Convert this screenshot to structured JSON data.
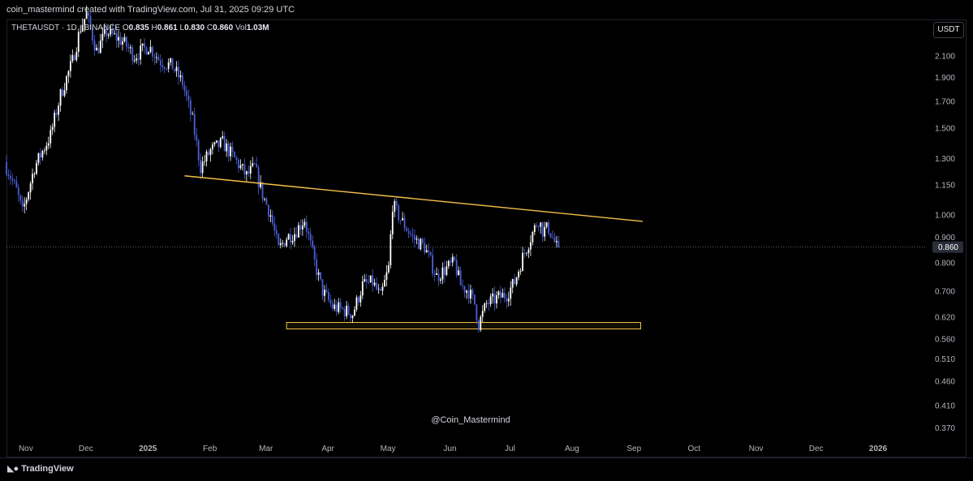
{
  "header": {
    "author_line": "coin_mastermind created with TradingView.com, Jul 31, 2025 09:29 UTC"
  },
  "legend": {
    "symbol": "THETAUSDT · 1D · BINANCE",
    "o_label": "O",
    "o_value": "0.835",
    "h_label": "H",
    "h_value": "0.861",
    "l_label": "L",
    "l_value": "0.830",
    "c_label": "C",
    "c_value": "0.860",
    "vol_label": "Vol",
    "vol_value": "1.03M"
  },
  "currency_button": "USDT",
  "watermark": "@Coin_Mastermind",
  "footer": {
    "brand": "TradingView"
  },
  "colors": {
    "background": "#000000",
    "candle_up": "#ffffff",
    "candle_down": "#4a5fd8",
    "trendline": "#f5c04a",
    "support_zone": "#f5c04a",
    "price_line": "#9598a1"
  },
  "chart_data": {
    "type": "candlestick",
    "symbol": "THETAUSDT",
    "interval": "1D",
    "exchange": "BINANCE",
    "y_scale": "log",
    "last_price": 0.86,
    "last_price_label": "0.860",
    "y_ticks": [
      "2.100",
      "1.900",
      "1.700",
      "1.500",
      "1.300",
      "1.150",
      "1.000",
      "0.900",
      "0.800",
      "0.700",
      "0.620",
      "0.560",
      "0.510",
      "0.460",
      "0.410",
      "0.370"
    ],
    "x_ticks": [
      "Nov",
      "Dec",
      "2025",
      "Feb",
      "Mar",
      "Apr",
      "May",
      "Jun",
      "Jul",
      "Aug",
      "Sep",
      "Oct",
      "Nov",
      "Dec",
      "2026"
    ],
    "x_range": [
      "2024-10-28",
      "2026-01-31"
    ],
    "y_range": [
      0.35,
      2.3
    ],
    "price_path": [
      [
        "2024-10-28",
        1.28
      ],
      [
        "2024-11-03",
        1.12
      ],
      [
        "2024-11-06",
        1.01
      ],
      [
        "2024-11-12",
        1.25
      ],
      [
        "2024-11-20",
        1.45
      ],
      [
        "2024-11-25",
        1.75
      ],
      [
        "2024-12-01",
        2.05
      ],
      [
        "2024-12-05",
        2.4
      ],
      [
        "2024-12-08",
        2.55
      ],
      [
        "2024-12-13",
        2.15
      ],
      [
        "2024-12-18",
        2.35
      ],
      [
        "2024-12-26",
        2.25
      ],
      [
        "2025-01-01",
        2.1
      ],
      [
        "2025-01-08",
        2.2
      ],
      [
        "2025-01-14",
        2.05
      ],
      [
        "2025-01-20",
        2.0
      ],
      [
        "2025-01-25",
        1.85
      ],
      [
        "2025-01-30",
        1.55
      ],
      [
        "2025-02-03",
        1.25
      ],
      [
        "2025-02-08",
        1.35
      ],
      [
        "2025-02-14",
        1.4
      ],
      [
        "2025-02-20",
        1.3
      ],
      [
        "2025-02-26",
        1.2
      ],
      [
        "2025-03-02",
        1.25
      ],
      [
        "2025-03-06",
        1.1
      ],
      [
        "2025-03-10",
        1.0
      ],
      [
        "2025-03-14",
        0.85
      ],
      [
        "2025-03-18",
        0.9
      ],
      [
        "2025-03-22",
        0.92
      ],
      [
        "2025-03-27",
        0.98
      ],
      [
        "2025-04-01",
        0.8
      ],
      [
        "2025-04-05",
        0.7
      ],
      [
        "2025-04-10",
        0.65
      ],
      [
        "2025-04-16",
        0.64
      ],
      [
        "2025-04-20",
        0.63
      ],
      [
        "2025-04-25",
        0.72
      ],
      [
        "2025-04-30",
        0.73
      ],
      [
        "2025-05-04",
        0.68
      ],
      [
        "2025-05-08",
        0.78
      ],
      [
        "2025-05-10",
        1.05
      ],
      [
        "2025-05-14",
        0.98
      ],
      [
        "2025-05-20",
        0.9
      ],
      [
        "2025-05-26",
        0.86
      ],
      [
        "2025-06-01",
        0.75
      ],
      [
        "2025-06-06",
        0.78
      ],
      [
        "2025-06-10",
        0.8
      ],
      [
        "2025-06-13",
        0.72
      ],
      [
        "2025-06-17",
        0.7
      ],
      [
        "2025-06-20",
        0.66
      ],
      [
        "2025-06-22",
        0.6
      ],
      [
        "2025-06-26",
        0.66
      ],
      [
        "2025-07-02",
        0.68
      ],
      [
        "2025-07-06",
        0.69
      ],
      [
        "2025-07-10",
        0.73
      ],
      [
        "2025-07-14",
        0.82
      ],
      [
        "2025-07-18",
        0.9
      ],
      [
        "2025-07-22",
        0.98
      ],
      [
        "2025-07-24",
        0.93
      ],
      [
        "2025-07-27",
        0.94
      ],
      [
        "2025-07-31",
        0.86
      ]
    ],
    "trendline": {
      "from": [
        "2025-01-25",
        1.2
      ],
      "to": [
        "2025-09-11",
        0.97
      ]
    },
    "support_zone": {
      "from": "2025-03-17",
      "to": "2025-09-10",
      "low": 0.587,
      "high": 0.605
    }
  }
}
